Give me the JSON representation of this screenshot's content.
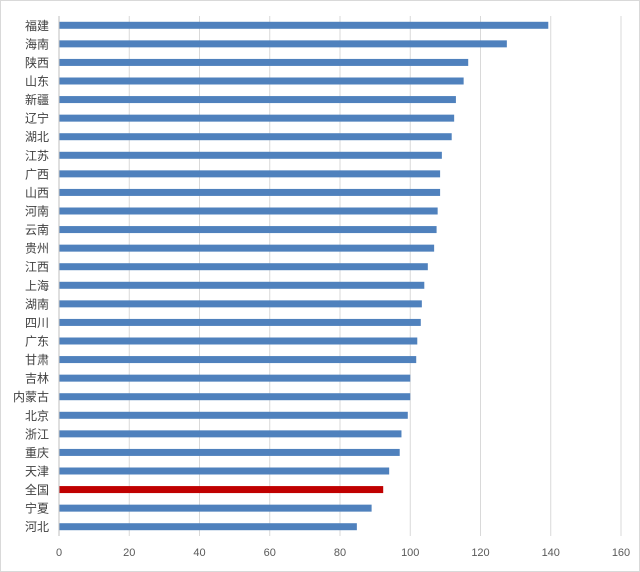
{
  "chart_data": {
    "type": "bar",
    "orientation": "horizontal",
    "categories": [
      "福建",
      "海南",
      "陕西",
      "山东",
      "新疆",
      "辽宁",
      "湖北",
      "江苏",
      "广西",
      "山西",
      "河南",
      "云南",
      "贵州",
      "江西",
      "上海",
      "湖南",
      "四川",
      "广东",
      "甘肃",
      "吉林",
      "内蒙古",
      "北京",
      "浙江",
      "重庆",
      "天津",
      "全国",
      "宁夏",
      "河北"
    ],
    "values": [
      139.3,
      127.5,
      116.5,
      115.2,
      113.0,
      112.5,
      111.8,
      109.0,
      108.5,
      108.5,
      107.8,
      107.5,
      106.8,
      105.0,
      104.0,
      103.3,
      103.0,
      102.0,
      101.7,
      100.0,
      100.0,
      99.3,
      97.5,
      97.0,
      94.0,
      92.3,
      89.0,
      84.8
    ],
    "highlight": "全国",
    "bar_color": "#4f81bd",
    "highlight_color": "#c00000",
    "title": "",
    "xlabel": "",
    "ylabel": "",
    "xlim": [
      0,
      160
    ],
    "ticks": [
      0,
      20,
      40,
      60,
      80,
      100,
      120,
      140,
      160
    ],
    "grid": "vertical",
    "legend": "none"
  }
}
